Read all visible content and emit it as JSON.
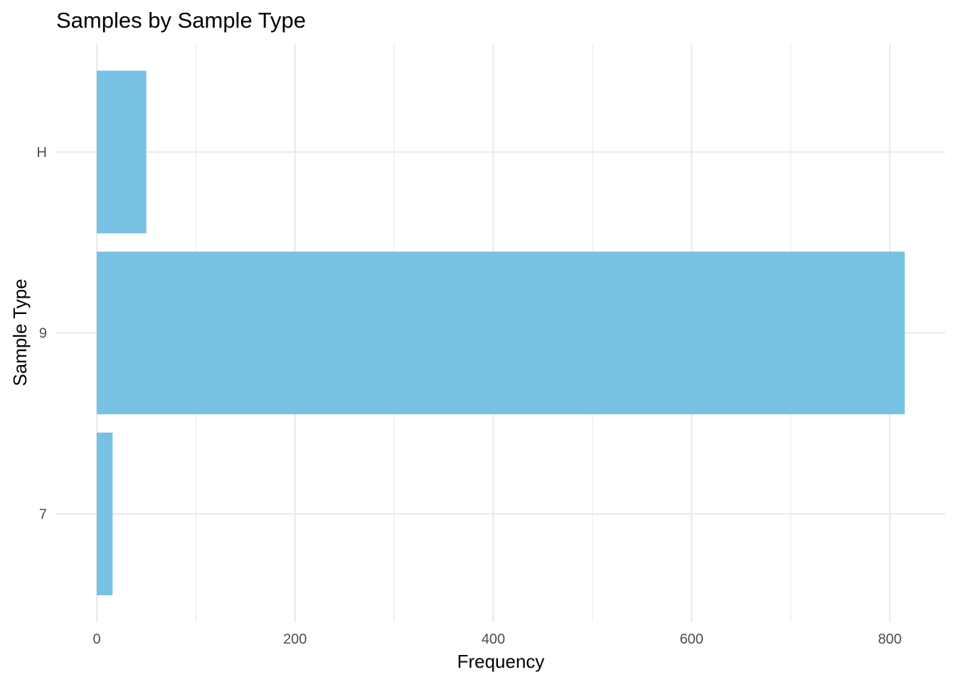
{
  "chart_data": {
    "type": "bar",
    "orientation": "horizontal",
    "title": "Samples by Sample Type",
    "xlabel": "Frequency",
    "ylabel": "Sample Type",
    "categories": [
      "H",
      "9",
      "7"
    ],
    "values": [
      50,
      815,
      16
    ],
    "xlim": [
      0,
      830
    ],
    "x_ticks": [
      0,
      200,
      400,
      600,
      800
    ],
    "x_minor_ticks": [
      100,
      300,
      500,
      700
    ],
    "grid": true,
    "legend": "none",
    "bar_color": "#77C1E5",
    "grid_color": "#EBEBEB",
    "tick_label_color": "#4D4D4D"
  }
}
